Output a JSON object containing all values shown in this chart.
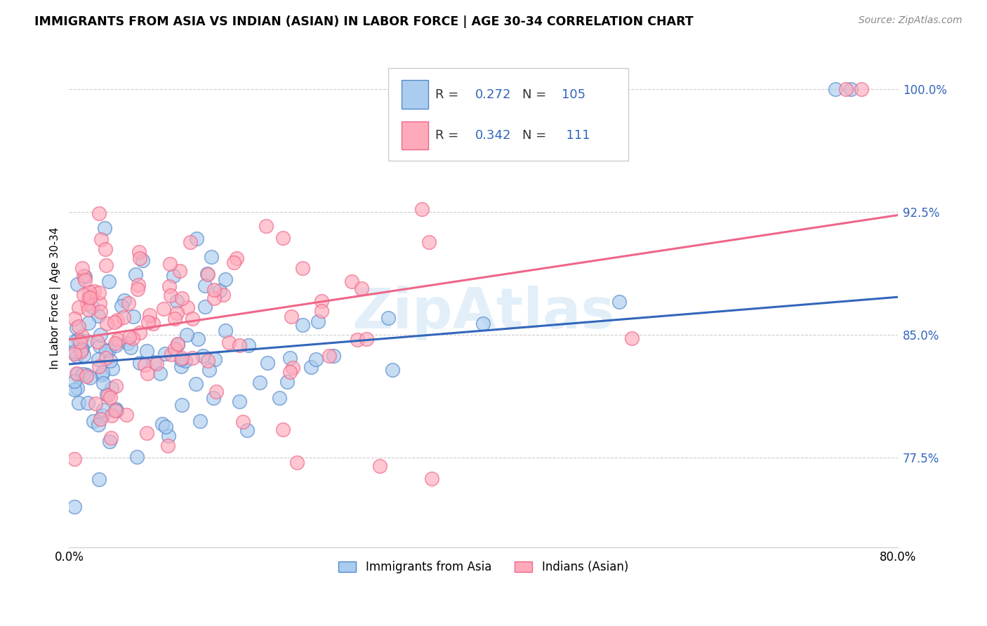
{
  "title": "IMMIGRANTS FROM ASIA VS INDIAN (ASIAN) IN LABOR FORCE | AGE 30-34 CORRELATION CHART",
  "source": "Source: ZipAtlas.com",
  "ylabel": "In Labor Force | Age 30-34",
  "x_min": 0.0,
  "x_max": 0.8,
  "y_min": 0.72,
  "y_max": 1.025,
  "y_ticks": [
    0.775,
    0.85,
    0.925,
    1.0
  ],
  "y_tick_labels": [
    "77.5%",
    "85.0%",
    "92.5%",
    "100.0%"
  ],
  "x_ticks": [
    0.0,
    0.8
  ],
  "x_tick_labels": [
    "0.0%",
    "80.0%"
  ],
  "watermark": "ZipAtlas",
  "legend_R1": "0.272",
  "legend_N1": "105",
  "legend_R2": "0.342",
  "legend_N2": "111",
  "color_blue_fill": "#aaccee",
  "color_pink_fill": "#ffaabb",
  "color_blue_edge": "#5588cc",
  "color_pink_edge": "#ee6688",
  "color_blue_line": "#3366bb",
  "color_pink_line": "#ee6688",
  "color_blue_text": "#3366bb",
  "line1_x0": 0.0,
  "line1_y0": 0.832,
  "line1_x1": 0.8,
  "line1_y1": 0.873,
  "line2_x0": 0.0,
  "line2_y0": 0.847,
  "line2_x1": 0.8,
  "line2_y1": 0.923
}
